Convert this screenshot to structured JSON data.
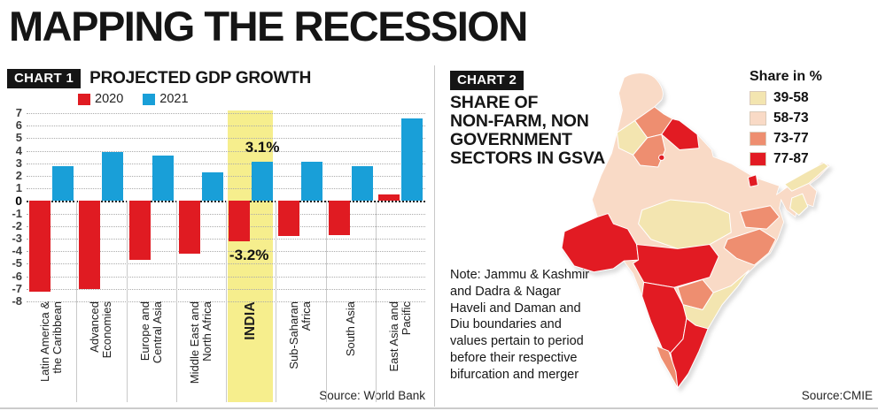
{
  "page": {
    "title": "MAPPING THE RECESSION"
  },
  "chart1": {
    "tag": "CHART 1",
    "title": "PROJECTED GDP GROWTH",
    "source": "Source: World Bank"
  },
  "chart2": {
    "tag": "CHART 2",
    "title_lines": [
      "SHARE OF",
      "NON-FARM, NON",
      "GOVERNMENT",
      "SECTORS IN GSVA"
    ],
    "note": "Note: Jammu & Kashmir and Dadra & Nagar Haveli and Daman and Diu boundaries and values pertain to period before their respective bifurcation and merger",
    "source": "Source:CMIE"
  },
  "chart_data": [
    {
      "type": "bar",
      "title": "PROJECTED GDP GROWTH",
      "categories": [
        "Latin America & the Caribbean",
        "Advanced Economies",
        "Europe and Central Asia",
        "Middle East and North Africa",
        "INDIA",
        "Sub-Saharan Africa",
        "South Asia",
        "East Asia and Pacific"
      ],
      "series": [
        {
          "name": "2020",
          "color": "#e01b22",
          "values": [
            -7.2,
            -7.0,
            -4.7,
            -4.2,
            -3.2,
            -2.8,
            -2.7,
            0.5
          ]
        },
        {
          "name": "2021",
          "color": "#199fd8",
          "values": [
            2.8,
            3.9,
            3.6,
            2.3,
            3.1,
            3.1,
            2.8,
            6.6
          ]
        }
      ],
      "ylim": [
        -8,
        7
      ],
      "yticks": [
        7,
        6,
        5,
        4,
        3,
        2,
        1,
        0,
        -1,
        -2,
        -3,
        -4,
        -5,
        -6,
        -7,
        -8
      ],
      "grid": "dotted-horizontal",
      "legend_position": "top",
      "highlight_index": 4,
      "highlight_color": "#f6ee8d",
      "annotations": [
        {
          "text": "3.1%",
          "category_index": 4,
          "series": "2021"
        },
        {
          "text": "-3.2%",
          "category_index": 4,
          "series": "2020"
        }
      ],
      "source": "Source: World Bank"
    },
    {
      "type": "choropleth",
      "title": "SHARE OF NON-FARM, NON GOVERNMENT SECTORS IN GSVA",
      "legend_title": "Share in %",
      "bins": [
        {
          "range": "39-58",
          "color": "#f3e5b0"
        },
        {
          "range": "58-73",
          "color": "#f9dac6"
        },
        {
          "range": "73-77",
          "color": "#ee8e70"
        },
        {
          "range": "77-87",
          "color": "#e21b23"
        }
      ],
      "base_bin": "58-73",
      "regions": [
        {
          "name": "Jammu & Kashmir",
          "bin": "58-73"
        },
        {
          "name": "Himachal Pradesh",
          "bin": "73-77"
        },
        {
          "name": "Punjab",
          "bin": "39-58"
        },
        {
          "name": "Uttarakhand",
          "bin": "77-87"
        },
        {
          "name": "Haryana",
          "bin": "73-77"
        },
        {
          "name": "Delhi",
          "bin": "77-87"
        },
        {
          "name": "Rajasthan",
          "bin": "58-73"
        },
        {
          "name": "Uttar Pradesh",
          "bin": "58-73"
        },
        {
          "name": "Bihar",
          "bin": "58-73"
        },
        {
          "name": "Sikkim",
          "bin": "77-87"
        },
        {
          "name": "Arunachal Pradesh",
          "bin": "39-58"
        },
        {
          "name": "Assam",
          "bin": "58-73"
        },
        {
          "name": "Mizoram-Manipur area",
          "bin": "39-58"
        },
        {
          "name": "West Bengal",
          "bin": "58-73"
        },
        {
          "name": "Jharkhand",
          "bin": "73-77"
        },
        {
          "name": "Odisha",
          "bin": "73-77"
        },
        {
          "name": "Chhattisgarh",
          "bin": "58-73"
        },
        {
          "name": "Madhya Pradesh",
          "bin": "39-58"
        },
        {
          "name": "Gujarat",
          "bin": "77-87"
        },
        {
          "name": "Maharashtra",
          "bin": "77-87"
        },
        {
          "name": "Telangana",
          "bin": "73-77"
        },
        {
          "name": "Andhra Pradesh",
          "bin": "39-58"
        },
        {
          "name": "Karnataka",
          "bin": "77-87"
        },
        {
          "name": "Kerala",
          "bin": "73-77"
        },
        {
          "name": "Tamil Nadu",
          "bin": "77-87"
        }
      ],
      "note": "Note: Jammu & Kashmir and Dadra & Nagar Haveli and Daman and Diu boundaries and values pertain to period before their respective bifurcation and merger",
      "source": "Source:CMIE"
    }
  ]
}
